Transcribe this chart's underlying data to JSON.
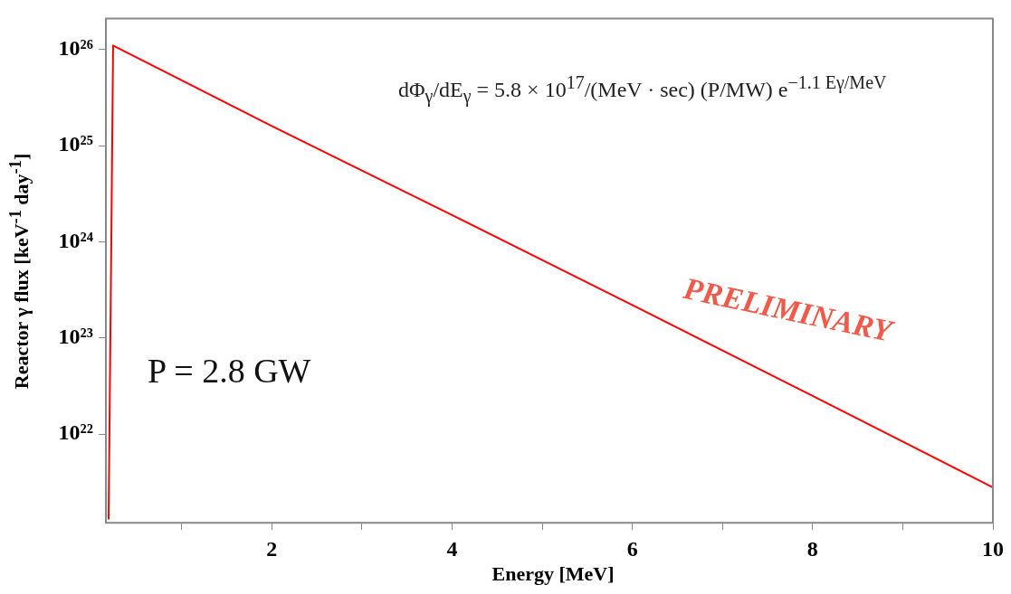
{
  "chart_data": {
    "type": "line",
    "xlabel": "Energy [MeV]",
    "ylabel": "Reactor  γ flux [keV$^{-1}$ day$^{-1}$]",
    "x": [
      0.19,
      0.22,
      0.24,
      2,
      4,
      6,
      8,
      10
    ],
    "series": [
      {
        "color": "#ff0000",
        "values": [
          1.3e+21,
          1e+24,
          1.1e+26,
          1.6e+25,
          1.9e+24,
          2.2e+23,
          2.5e+22,
          2.8e+21
        ]
      }
    ],
    "xlim": [
      0.16,
      10
    ],
    "xticks": [
      {
        "value": 1,
        "label": null
      },
      2,
      {
        "value": 3,
        "label": null
      },
      4,
      {
        "value": 5,
        "label": null
      },
      6,
      {
        "value": 7,
        "label": null
      },
      8,
      {
        "value": 9,
        "label": null
      },
      10
    ],
    "ylim": [
      1.2e+21,
      2.1e+26
    ],
    "yticks": [
      {
        "value": 1e+22,
        "label": "10²²"
      },
      {
        "value": 1e+23,
        "label": "10²³"
      },
      {
        "value": 1e+24,
        "label": "10²⁴"
      },
      {
        "value": 1e+25,
        "label": "10²⁵"
      },
      {
        "value": 1e+26,
        "label": "10²⁶"
      }
    ],
    "log": "y",
    "grid": false,
    "legend": false,
    "marker": "none",
    "line_style": "solid",
    "annotations": [
      "dΦ$_{γ}$/dE$_{γ}$ = 5.8 × 10$^{17}$/(MeV · sec) (P/MW) e$^{−1.1 Eγ/MeV}$",
      "PRELIMINARY",
      "P = 2.8 GW"
    ]
  }
}
